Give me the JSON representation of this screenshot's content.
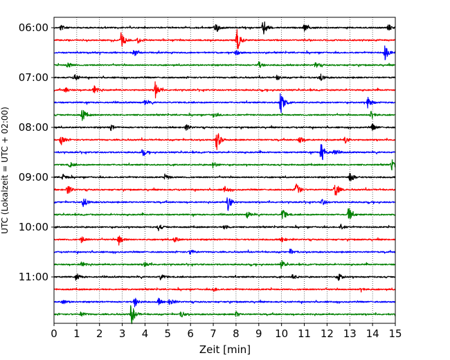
{
  "chart_data": {
    "type": "line",
    "title": "",
    "xlabel": "Zeit  [min]",
    "ylabel": "UTC (Lokalzeit = UTC + 02:00)",
    "xlim": [
      0,
      15
    ],
    "x_ticks": [
      "0",
      "1",
      "2",
      "3",
      "4",
      "5",
      "6",
      "7",
      "8",
      "9",
      "10",
      "11",
      "12",
      "13",
      "14",
      "15"
    ],
    "y_ticks": [
      "06:00",
      "07:00",
      "08:00",
      "09:00",
      "10:00",
      "11:00"
    ],
    "row_interval_min": 15,
    "start_time": "06:00",
    "grid": "vertical dotted",
    "row_colors": [
      "#000000",
      "#ff0000",
      "#0000ff",
      "#008000"
    ],
    "rows": [
      {
        "start": "06:00",
        "events": [
          [
            7.1,
            0.6
          ],
          [
            9.2,
            0.8
          ],
          [
            0.3,
            0.25
          ],
          [
            11.0,
            0.3
          ],
          [
            14.7,
            0.3
          ]
        ]
      },
      {
        "start": "06:15",
        "events": [
          [
            2.95,
            0.7
          ],
          [
            8.05,
            1.0
          ],
          [
            3.7,
            0.3
          ]
        ]
      },
      {
        "start": "06:30",
        "events": [
          [
            14.55,
            0.7
          ],
          [
            8.0,
            0.3
          ],
          [
            3.5,
            0.25
          ]
        ]
      },
      {
        "start": "06:45",
        "events": [
          [
            0.6,
            0.3
          ],
          [
            9.0,
            0.3
          ],
          [
            11.5,
            0.3
          ]
        ]
      },
      {
        "start": "07:00",
        "events": [
          [
            0.9,
            0.35
          ],
          [
            11.7,
            0.35
          ],
          [
            9.8,
            0.25
          ]
        ]
      },
      {
        "start": "07:15",
        "events": [
          [
            1.75,
            0.45
          ],
          [
            4.45,
            0.8
          ],
          [
            0.5,
            0.25
          ]
        ]
      },
      {
        "start": "07:30",
        "events": [
          [
            9.95,
            1.4
          ],
          [
            13.8,
            0.6
          ],
          [
            4.0,
            0.25
          ]
        ]
      },
      {
        "start": "07:45",
        "events": [
          [
            1.25,
            0.55
          ],
          [
            13.95,
            0.5
          ],
          [
            7.0,
            0.25
          ]
        ]
      },
      {
        "start": "08:00",
        "events": [
          [
            5.8,
            0.3
          ],
          [
            14.0,
            0.3
          ],
          [
            2.5,
            0.25
          ]
        ]
      },
      {
        "start": "08:15",
        "events": [
          [
            0.3,
            0.5
          ],
          [
            7.15,
            1.0
          ],
          [
            10.8,
            0.35
          ],
          [
            12.8,
            0.3
          ]
        ]
      },
      {
        "start": "08:30",
        "events": [
          [
            11.75,
            1.0
          ],
          [
            3.9,
            0.3
          ],
          [
            12.3,
            0.3
          ]
        ]
      },
      {
        "start": "08:45",
        "events": [
          [
            14.85,
            0.5
          ],
          [
            7.0,
            0.3
          ],
          [
            0.7,
            0.25
          ]
        ]
      },
      {
        "start": "09:00",
        "events": [
          [
            13.0,
            0.6
          ],
          [
            0.4,
            0.3
          ],
          [
            4.9,
            0.3
          ]
        ]
      },
      {
        "start": "09:15",
        "events": [
          [
            0.6,
            0.5
          ],
          [
            10.65,
            0.7
          ],
          [
            12.35,
            0.8
          ],
          [
            7.5,
            0.3
          ]
        ]
      },
      {
        "start": "09:30",
        "events": [
          [
            1.3,
            0.5
          ],
          [
            7.65,
            0.8
          ],
          [
            11.8,
            0.3
          ]
        ]
      },
      {
        "start": "09:45",
        "events": [
          [
            10.05,
            0.55
          ],
          [
            12.95,
            0.7
          ],
          [
            8.5,
            0.3
          ]
        ]
      },
      {
        "start": "10:00",
        "events": [
          [
            4.6,
            0.3
          ],
          [
            7.5,
            0.25
          ],
          [
            12.6,
            0.25
          ]
        ]
      },
      {
        "start": "10:15",
        "events": [
          [
            2.85,
            0.6
          ],
          [
            1.2,
            0.3
          ],
          [
            5.3,
            0.3
          ],
          [
            10.0,
            0.25
          ]
        ]
      },
      {
        "start": "10:30",
        "events": [
          [
            6.0,
            0.25
          ],
          [
            10.4,
            0.25
          ]
        ]
      },
      {
        "start": "10:45",
        "events": [
          [
            1.2,
            0.3
          ],
          [
            10.0,
            0.35
          ],
          [
            4.0,
            0.25
          ]
        ]
      },
      {
        "start": "11:00",
        "events": [
          [
            1.0,
            0.3
          ],
          [
            4.7,
            0.3
          ],
          [
            12.5,
            0.35
          ],
          [
            10.5,
            0.25
          ]
        ]
      },
      {
        "start": "11:15",
        "events": [
          [
            7.0,
            0.25
          ],
          [
            13.5,
            0.25
          ]
        ]
      },
      {
        "start": "11:30",
        "events": [
          [
            3.55,
            0.45
          ],
          [
            5.1,
            0.35
          ],
          [
            4.6,
            0.3
          ],
          [
            0.4,
            0.25
          ]
        ]
      },
      {
        "start": "11:45",
        "events": [
          [
            3.4,
            1.0
          ],
          [
            5.6,
            0.3
          ],
          [
            1.2,
            0.25
          ],
          [
            8.0,
            0.25
          ]
        ]
      }
    ]
  }
}
